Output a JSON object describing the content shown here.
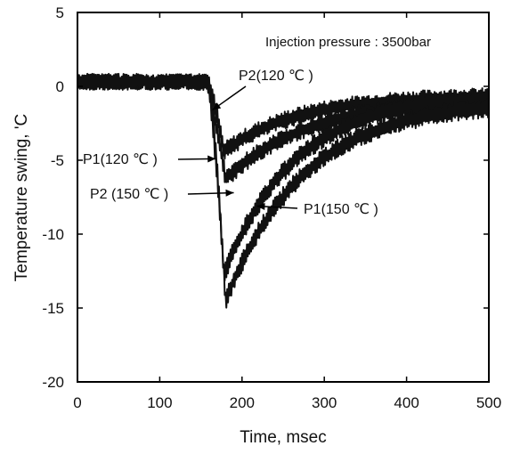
{
  "chart_data": {
    "type": "line",
    "annotation_text": "Injection pressure : 3500bar",
    "xlabel": "Time, msec",
    "ylabel": "Temperature swing, 'C",
    "xlim": [
      0,
      500
    ],
    "ylim": [
      -20,
      5
    ],
    "x_ticks": [
      0,
      100,
      200,
      300,
      400,
      500
    ],
    "y_ticks": [
      5,
      0,
      -5,
      -10,
      -15,
      -20
    ],
    "grid": false,
    "legend": "none",
    "line_color": "#111111",
    "series": [
      {
        "name": "P2(120 ℃ )",
        "baseline": 0.3,
        "onset": 158,
        "min_x": 178,
        "min_y": -4.4,
        "end_y": -0.6,
        "tau": 90,
        "noise": 0.5
      },
      {
        "name": "P1(120 ℃ )",
        "baseline": 0.3,
        "onset": 156,
        "min_x": 180,
        "min_y": -6.3,
        "end_y": -0.8,
        "tau": 100,
        "noise": 0.5
      },
      {
        "name": "P2 (150 ℃ )",
        "baseline": 0.3,
        "onset": 158,
        "min_x": 178,
        "min_y": -12.7,
        "end_y": -0.6,
        "tau": 85,
        "noise": 0.55
      },
      {
        "name": "P1(150 ℃ )",
        "baseline": 0.3,
        "onset": 160,
        "min_x": 180,
        "min_y": -14.5,
        "end_y": -1.0,
        "tau": 95,
        "noise": 0.55
      }
    ],
    "annotations": [
      {
        "text": "P2(120 ℃ )",
        "point": [
          164,
          -1.6
        ]
      },
      {
        "text": "P1(120 ℃ )",
        "point": [
          168,
          -4.9
        ]
      },
      {
        "text": "P2 (150 ℃ )",
        "point": [
          190,
          -7.2
        ]
      },
      {
        "text": "P1(150 ℃ )",
        "point": [
          218,
          -8.1
        ]
      }
    ]
  }
}
